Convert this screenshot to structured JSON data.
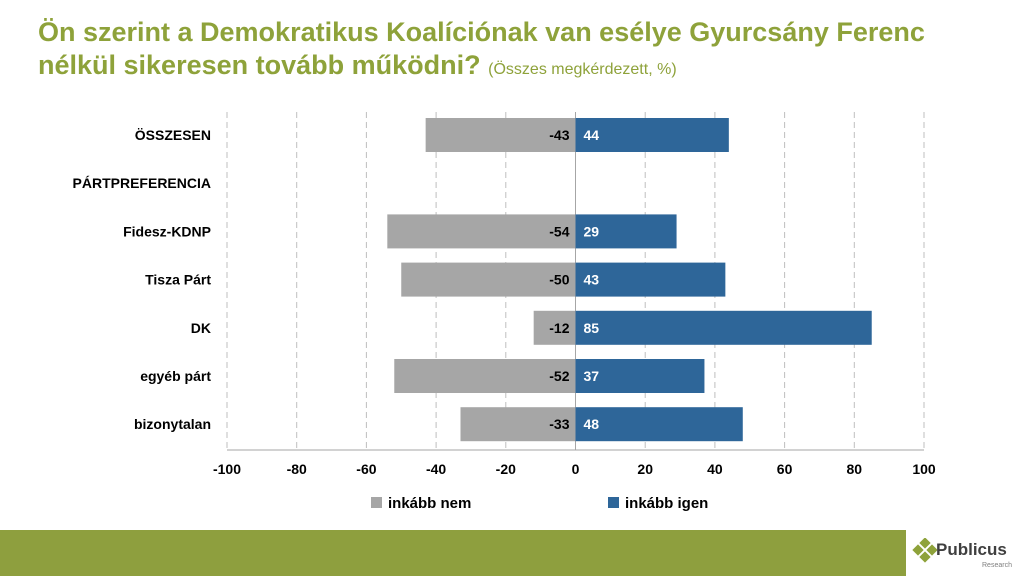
{
  "title": {
    "main": "Ön szerint a Demokratikus Koalíciónak van esélye Gyurcsány Ferenc nélkül sikeresen tovább működni?",
    "sub": "(Összes megkérdezett, %)"
  },
  "colors": {
    "title": "#8ea23a",
    "footer": "#8e9f3e",
    "series_no": "#a6a6a6",
    "series_yes": "#2e6699",
    "grid": "#bfbfbf"
  },
  "brand": {
    "name": "Publicus",
    "sub": "Research",
    "icon": "diamond-logo-icon"
  },
  "chart_data": {
    "type": "bar",
    "orientation": "horizontal",
    "categories": [
      "ÖSSZESEN",
      "PÁRTPREFERENCIA",
      "Fidesz-KDNP",
      "Tisza Párt",
      "DK",
      "egyéb párt",
      "bizonytalan"
    ],
    "series": [
      {
        "name": "inkább nem",
        "values": [
          -43,
          null,
          -54,
          -50,
          -12,
          -52,
          -33
        ],
        "color": "#a6a6a6"
      },
      {
        "name": "inkább igen",
        "values": [
          44,
          null,
          29,
          43,
          85,
          37,
          48
        ],
        "color": "#2e6699"
      }
    ],
    "xlim": [
      -100,
      100
    ],
    "xticks": [
      -100,
      -80,
      -60,
      -40,
      -20,
      0,
      20,
      40,
      60,
      80,
      100
    ],
    "grid": "vertical dashed",
    "legend": "bottom"
  }
}
